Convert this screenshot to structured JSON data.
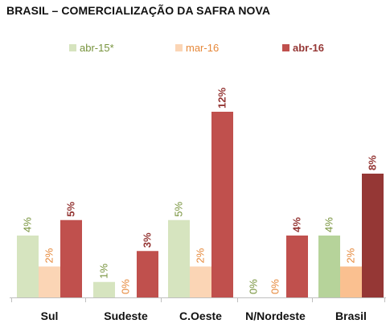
{
  "chart_data": {
    "type": "bar",
    "title": "BRASIL – COMERCIALIZAÇÃO DA SAFRA NOVA",
    "categories": [
      "Sul",
      "Sudeste",
      "C.Oeste",
      "N/Nordeste",
      "Brasil"
    ],
    "series": [
      {
        "name": "abr-15*",
        "values": [
          4,
          1,
          5,
          0,
          4
        ],
        "labels": [
          "4%",
          "1%",
          "5%",
          "0%",
          "4%"
        ],
        "color": "#d6e4bf",
        "brasil_color": "#b6d39a",
        "label_color": "#77933c"
      },
      {
        "name": "mar-16",
        "values": [
          2,
          0,
          2,
          0,
          2
        ],
        "labels": [
          "2%",
          "0%",
          "2%",
          "0%",
          "2%"
        ],
        "color": "#fbd5b5",
        "brasil_color": "#fac090",
        "label_color": "#e6883a"
      },
      {
        "name": "abr-16",
        "values": [
          5,
          3,
          12,
          4,
          8
        ],
        "labels": [
          "5%",
          "3%",
          "12%",
          "4%",
          "8%"
        ],
        "color": "#c0504d",
        "brasil_color": "#953735",
        "label_color": "#953735"
      }
    ],
    "ylim": [
      0,
      12.5
    ],
    "grid": false,
    "legend_position": "top"
  }
}
